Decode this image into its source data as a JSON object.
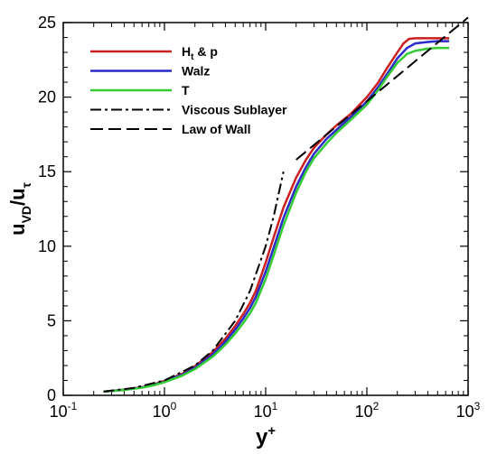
{
  "chart_data": {
    "type": "line",
    "xscale": "log",
    "xlim": [
      0.1,
      1000
    ],
    "ylim": [
      0,
      25
    ],
    "grid": false,
    "legend_position": "top-left",
    "xlabel": {
      "main": "y",
      "sup": "+"
    },
    "ylabel": {
      "u": "u",
      "vd": "VD",
      "slash": "/u",
      "tau": "τ"
    },
    "x_ticks": [
      {
        "value": 0.1,
        "base": "10",
        "exp": "-1"
      },
      {
        "value": 1,
        "base": "10",
        "exp": "0"
      },
      {
        "value": 10,
        "base": "10",
        "exp": "1"
      },
      {
        "value": 100,
        "base": "10",
        "exp": "2"
      },
      {
        "value": 1000,
        "base": "10",
        "exp": "3"
      }
    ],
    "y_ticks": [
      "0",
      "5",
      "10",
      "15",
      "20",
      "25"
    ],
    "series": [
      {
        "name": "Ht & p",
        "name_parts": {
          "main": "H",
          "sub": "t",
          "rest": " & p"
        },
        "color": "#cc1f1f",
        "style": "solid",
        "x": [
          0.25,
          0.4,
          0.6,
          0.8,
          1.0,
          1.5,
          2.0,
          3.0,
          4.0,
          5.0,
          6.0,
          7.0,
          8.0,
          10.0,
          12.0,
          15.0,
          20.0,
          25.0,
          30.0,
          40.0,
          50.0,
          70.0,
          100.0,
          130.0,
          160.0,
          200.0,
          230.0,
          260.0,
          300.0,
          400.0,
          500.0,
          650.0
        ],
        "y": [
          0.25,
          0.38,
          0.55,
          0.75,
          0.97,
          1.45,
          1.95,
          2.9,
          3.8,
          4.65,
          5.45,
          6.2,
          7.0,
          8.9,
          10.6,
          12.6,
          14.6,
          15.8,
          16.6,
          17.5,
          18.1,
          18.9,
          20.0,
          21.0,
          22.0,
          23.0,
          23.6,
          23.9,
          23.95,
          23.95,
          23.95,
          23.95
        ]
      },
      {
        "name": "Walz",
        "color": "#2b2bc9",
        "style": "solid",
        "x": [
          0.25,
          0.4,
          0.6,
          0.8,
          1.0,
          1.5,
          2.0,
          3.0,
          4.0,
          5.0,
          6.0,
          7.0,
          8.0,
          10.0,
          12.0,
          15.0,
          20.0,
          25.0,
          30.0,
          40.0,
          50.0,
          70.0,
          100.0,
          130.0,
          160.0,
          200.0,
          250.0,
          300.0,
          400.0,
          500.0,
          650.0
        ],
        "y": [
          0.25,
          0.37,
          0.53,
          0.72,
          0.92,
          1.38,
          1.85,
          2.75,
          3.6,
          4.4,
          5.15,
          5.85,
          6.6,
          8.3,
          9.9,
          11.9,
          14.0,
          15.3,
          16.2,
          17.2,
          17.8,
          18.7,
          19.7,
          20.7,
          21.6,
          22.6,
          23.3,
          23.6,
          23.7,
          23.75,
          23.75
        ]
      },
      {
        "name": "T",
        "color": "#33cc33",
        "style": "solid",
        "x": [
          0.25,
          0.4,
          0.6,
          0.8,
          1.0,
          1.5,
          2.0,
          3.0,
          4.0,
          5.0,
          6.0,
          7.0,
          8.0,
          10.0,
          12.0,
          15.0,
          20.0,
          25.0,
          30.0,
          40.0,
          50.0,
          70.0,
          100.0,
          130.0,
          160.0,
          200.0,
          250.0,
          300.0,
          400.0,
          500.0,
          650.0
        ],
        "y": [
          0.25,
          0.36,
          0.51,
          0.69,
          0.88,
          1.32,
          1.76,
          2.6,
          3.4,
          4.15,
          4.85,
          5.5,
          6.2,
          7.8,
          9.4,
          11.4,
          13.6,
          15.0,
          15.9,
          16.9,
          17.6,
          18.5,
          19.5,
          20.5,
          21.4,
          22.3,
          22.9,
          23.1,
          23.25,
          23.3,
          23.3
        ]
      },
      {
        "name": "Viscous Sublayer",
        "color": "#000000",
        "style": "dash-dot",
        "x": [
          0.25,
          0.5,
          1.0,
          2.0,
          3.0,
          5.0,
          7.0,
          10.0,
          12.0,
          15.0
        ],
        "y": [
          0.25,
          0.5,
          1.0,
          2.0,
          3.0,
          5.0,
          7.0,
          10.0,
          12.0,
          15.0
        ]
      },
      {
        "name": "Law of Wall",
        "color": "#000000",
        "style": "dashed",
        "x": [
          20.0,
          1000.0
        ],
        "y": [
          15.8,
          25.34
        ]
      }
    ]
  }
}
